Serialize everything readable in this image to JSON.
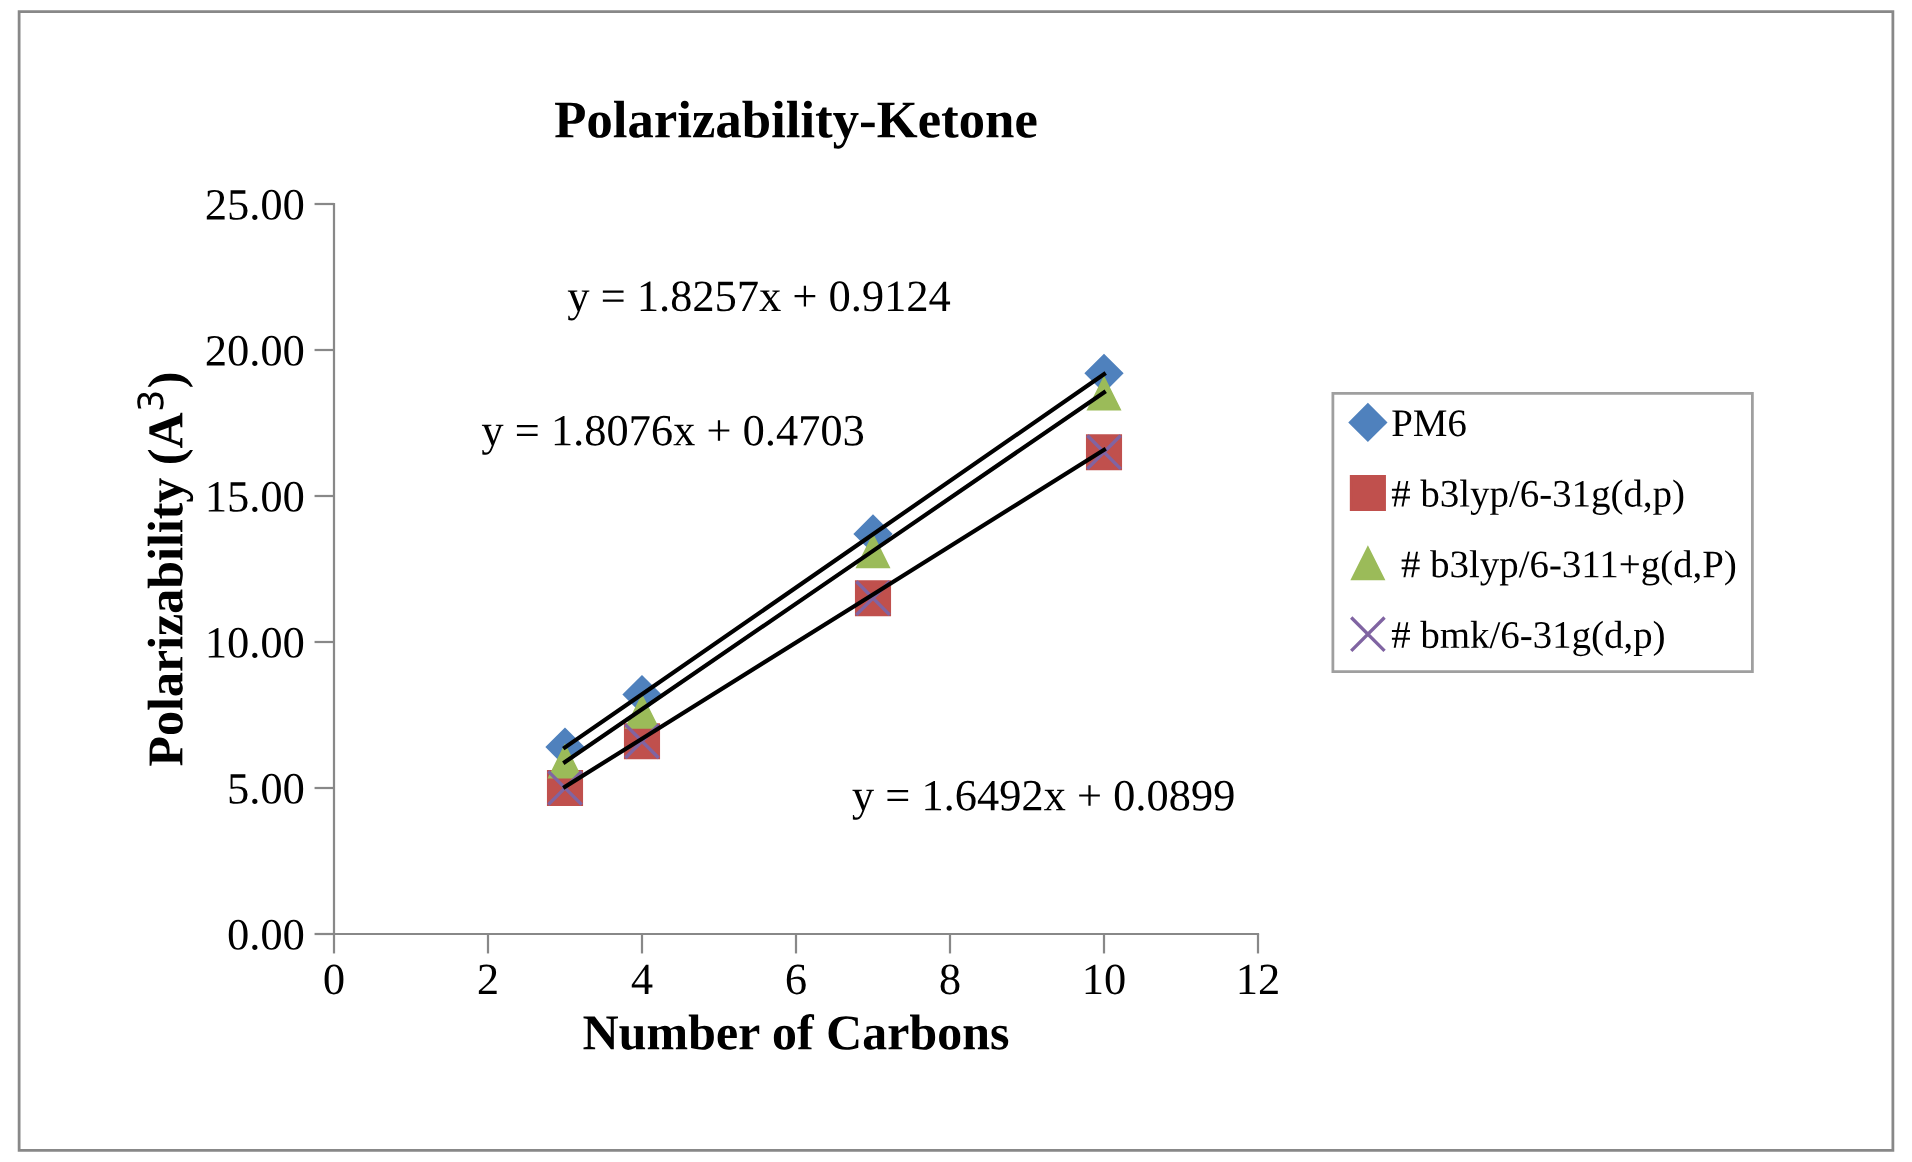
{
  "chart_data": {
    "type": "scatter",
    "title": "Polarizability-Ketone",
    "xlabel": "Number of Carbons",
    "ylabel": "Polarizability (A$^{3}$)",
    "x": [
      3,
      4,
      7,
      10
    ],
    "series": [
      {
        "name": "PM6",
        "color": "#4f81bd",
        "marker": "diamond",
        "values": [
          6.4,
          8.2,
          13.7,
          19.2
        ]
      },
      {
        "name": "# b3lyp/6-31g(d,p)",
        "color": "#c0504d",
        "marker": "square",
        "values": [
          5.0,
          6.6,
          11.5,
          16.5
        ]
      },
      {
        "name": " # b3lyp/6-311+g(d,P)",
        "color": "#9bbb59",
        "marker": "triangle",
        "values": [
          5.9,
          7.6,
          13.1,
          18.5
        ]
      },
      {
        "name": "# bmk/6-31g(d,p)",
        "color": "#8064a2",
        "marker": "cross",
        "values": [
          5.0,
          6.6,
          11.5,
          16.5
        ]
      },
      {
        "type": "line",
        "color": "#000000",
        "marker": "none",
        "values": [
          6.39,
          8.21,
          13.69,
          19.17
        ]
      },
      {
        "type": "line",
        "color": "#000000",
        "marker": "none",
        "values": [
          5.89,
          7.7,
          13.12,
          18.55
        ]
      },
      {
        "type": "line",
        "color": "#000000",
        "marker": "none",
        "values": [
          5.04,
          6.69,
          11.63,
          16.58
        ]
      }
    ],
    "annotations": [
      "y = 1.8257x + 0.9124",
      "y = 1.8076x + 0.4703",
      "y = 1.6492x + 0.0899"
    ],
    "xlim": [
      0,
      12
    ],
    "xticks": [
      0,
      2,
      4,
      6,
      8,
      10,
      12
    ],
    "ylim": [
      0,
      25
    ],
    "yticks": [
      {
        "value": 0,
        "label": "0.00"
      },
      {
        "value": 5,
        "label": "5.00"
      },
      {
        "value": 10,
        "label": "10.00"
      },
      {
        "value": 15,
        "label": "15.00"
      },
      {
        "value": 20,
        "label": "20.00"
      },
      {
        "value": 25,
        "label": "25.00"
      }
    ],
    "grid": false,
    "legend": "right"
  }
}
